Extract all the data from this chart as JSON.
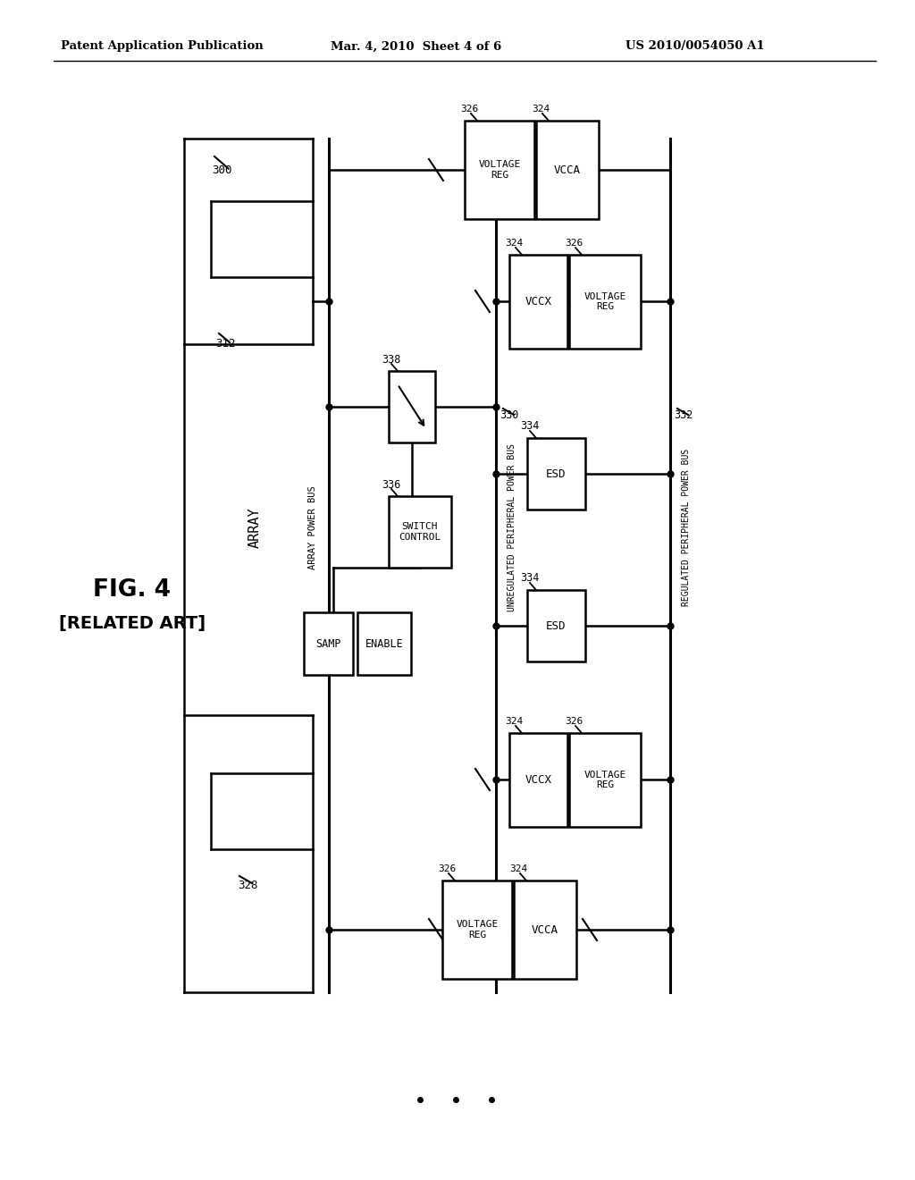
{
  "fig_label": "FIG. 4",
  "fig_sublabel": "[RELATED ART]",
  "header_left": "Patent Application Publication",
  "header_mid": "Mar. 4, 2010  Sheet 4 of 6",
  "header_right": "US 2010/0054050 A1",
  "background": "#ffffff"
}
